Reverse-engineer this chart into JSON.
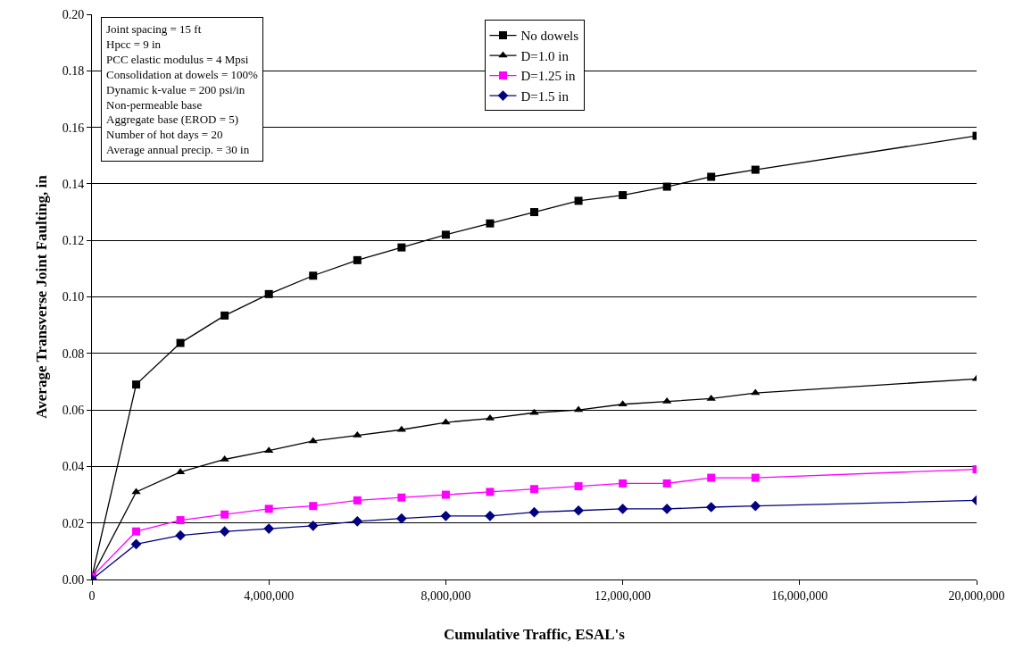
{
  "chart_data": {
    "type": "line",
    "xlabel": "Cumulative Traffic, ESAL's",
    "ylabel": "Average Transverse Joint Faulting, in",
    "x": [
      0,
      1000000,
      2000000,
      3000000,
      4000000,
      5000000,
      6000000,
      7000000,
      8000000,
      9000000,
      10000000,
      11000000,
      12000000,
      13000000,
      14000000,
      15000000,
      20000000
    ],
    "series": [
      {
        "name": "No dowels",
        "color": "#000000",
        "marker": "square",
        "values": [
          0.001,
          0.069,
          0.0837,
          0.0934,
          0.101,
          0.1075,
          0.113,
          0.1175,
          0.122,
          0.126,
          0.13,
          0.134,
          0.136,
          0.139,
          0.1425,
          0.145,
          0.157
        ]
      },
      {
        "name": "D=1.0 in",
        "color": "#000000",
        "marker": "triangle",
        "values": [
          0.001,
          0.031,
          0.038,
          0.0425,
          0.0456,
          0.049,
          0.051,
          0.053,
          0.0556,
          0.057,
          0.059,
          0.06,
          0.062,
          0.063,
          0.064,
          0.066,
          0.071
        ]
      },
      {
        "name": "D=1.25 in",
        "color": "#ff00ff",
        "marker": "square",
        "values": [
          0.001,
          0.017,
          0.021,
          0.023,
          0.025,
          0.026,
          0.028,
          0.029,
          0.03,
          0.031,
          0.032,
          0.033,
          0.034,
          0.034,
          0.036,
          0.036,
          0.039
        ]
      },
      {
        "name": "D=1.5 in",
        "color": "#000080",
        "marker": "diamond",
        "values": [
          0.0,
          0.0125,
          0.0156,
          0.017,
          0.018,
          0.019,
          0.0206,
          0.0216,
          0.0225,
          0.0225,
          0.0238,
          0.0244,
          0.025,
          0.025,
          0.0256,
          0.026,
          0.028
        ]
      }
    ],
    "xlim": [
      0,
      20000000
    ],
    "xticks": [
      {
        "value": 0,
        "label": "0"
      },
      {
        "value": 4000000,
        "label": "4,000,000"
      },
      {
        "value": 8000000,
        "label": "8,000,000"
      },
      {
        "value": 12000000,
        "label": "12,000,000"
      },
      {
        "value": 16000000,
        "label": "16,000,000"
      },
      {
        "value": 20000000,
        "label": "20,000,000"
      }
    ],
    "ylim": [
      0,
      0.2
    ],
    "yticks": [
      {
        "value": 0,
        "label": "0.00"
      },
      {
        "value": 0.02,
        "label": "0.02"
      },
      {
        "value": 0.04,
        "label": "0.04"
      },
      {
        "value": 0.06,
        "label": "0.06"
      },
      {
        "value": 0.08,
        "label": "0.08"
      },
      {
        "value": 0.1,
        "label": "0.10"
      },
      {
        "value": 0.12,
        "label": "0.12"
      },
      {
        "value": 0.14,
        "label": "0.14"
      },
      {
        "value": 0.16,
        "label": "0.16"
      },
      {
        "value": 0.18,
        "label": "0.18"
      },
      {
        "value": 0.2,
        "label": "0.20"
      }
    ],
    "grid": "y",
    "legend": "top",
    "line_style": "solid",
    "annotations": [
      "Joint spacing = 15 ft",
      "Hpcc = 9 in",
      "PCC elastic modulus = 4 Mpsi",
      "Consolidation at dowels = 100%",
      "Dynamic k-value = 200 psi/in",
      "Non-permeable base",
      "Aggregate base (EROD = 5)",
      "Number of hot days = 20",
      "Average annual precip. = 30 in"
    ]
  }
}
